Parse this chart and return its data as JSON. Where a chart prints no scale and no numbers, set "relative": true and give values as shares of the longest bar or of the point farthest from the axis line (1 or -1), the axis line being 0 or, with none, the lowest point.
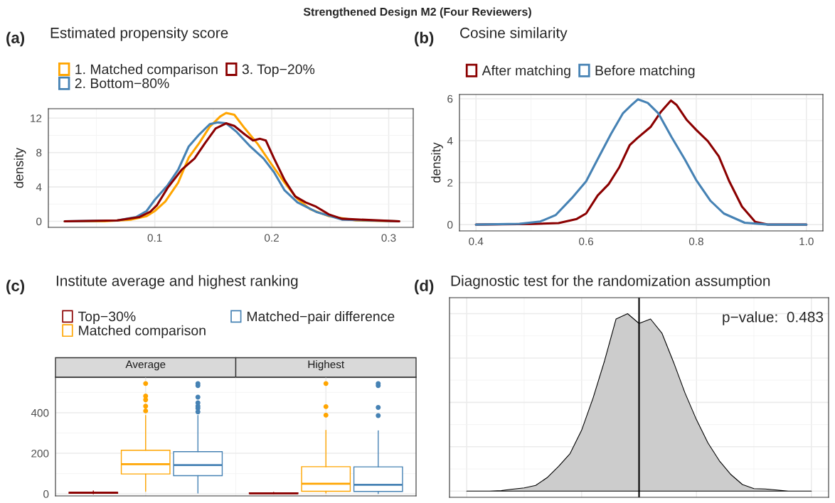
{
  "chart_data": [
    {
      "type": "line",
      "title": "Estimated propensity score",
      "ylabel": "density",
      "annotations": [
        "Strengthened Design M2 (Four Reviewers)",
        "(a)"
      ],
      "legend": "top",
      "grid": true,
      "xlim": [
        0.009,
        0.321
      ],
      "ylim": [
        -0.7,
        13.1
      ],
      "xticks": [
        0.1,
        0.2,
        0.3
      ],
      "yticks": [
        0,
        4,
        8,
        12
      ],
      "series": [
        {
          "name": "1. Matched comparison",
          "color": "#ffa500",
          "x": [
            0.023,
            0.057,
            0.08,
            0.093,
            0.1,
            0.109,
            0.12,
            0.129,
            0.138,
            0.147,
            0.156,
            0.161,
            0.168,
            0.177,
            0.188,
            0.199,
            0.211,
            0.222,
            0.233,
            0.249,
            0.272,
            0.309
          ],
          "values": [
            0,
            0,
            0.2,
            0.6,
            1.2,
            2.3,
            4.5,
            7.4,
            9.1,
            11.0,
            12.2,
            12.6,
            12.4,
            10.8,
            9.0,
            6.8,
            4.5,
            2.6,
            1.4,
            0.6,
            0.1,
            0
          ]
        },
        {
          "name": "2. Bottom−80%",
          "color": "#4682b4",
          "x": [
            0.023,
            0.068,
            0.084,
            0.093,
            0.1,
            0.111,
            0.12,
            0.129,
            0.138,
            0.147,
            0.154,
            0.161,
            0.17,
            0.181,
            0.193,
            0.202,
            0.211,
            0.222,
            0.238,
            0.26,
            0.309
          ],
          "values": [
            0,
            0.1,
            0.5,
            1.2,
            2.5,
            4.2,
            6.0,
            8.7,
            10.1,
            11.3,
            11.5,
            11.4,
            10.4,
            8.8,
            7.3,
            5.7,
            3.6,
            2.2,
            1.1,
            0.2,
            0
          ]
        },
        {
          "name": "3. Top−20%",
          "color": "#8b0000",
          "x": [
            0.023,
            0.068,
            0.087,
            0.096,
            0.102,
            0.111,
            0.123,
            0.134,
            0.143,
            0.152,
            0.161,
            0.168,
            0.177,
            0.184,
            0.19,
            0.195,
            0.202,
            0.211,
            0.22,
            0.229,
            0.238,
            0.249,
            0.26,
            0.309
          ],
          "values": [
            0,
            0.1,
            0.5,
            1.1,
            1.9,
            3.9,
            6.0,
            7.3,
            9.1,
            10.8,
            11.4,
            11.1,
            10.1,
            9.4,
            9.6,
            9.4,
            7.3,
            4.8,
            2.9,
            2.2,
            1.7,
            0.8,
            0.3,
            0
          ]
        }
      ]
    },
    {
      "type": "line",
      "title": "Cosine similarity",
      "ylabel": "density",
      "annotations": [
        "(b)"
      ],
      "legend": "top",
      "grid": true,
      "xlim": [
        0.37,
        1.03
      ],
      "ylim": [
        -0.3,
        6.2
      ],
      "xticks": [
        0.4,
        0.6,
        0.8,
        {
          "value": 1.0,
          "label": "1.0"
        }
      ],
      "yticks": [
        0,
        2,
        4,
        6
      ],
      "series": [
        {
          "name": "After matching",
          "color": "#8b0000",
          "x": [
            0.4,
            0.502,
            0.55,
            0.583,
            0.6,
            0.621,
            0.641,
            0.66,
            0.679,
            0.693,
            0.717,
            0.736,
            0.754,
            0.764,
            0.783,
            0.8,
            0.821,
            0.841,
            0.86,
            0.883,
            0.907,
            0.931,
            1.0
          ],
          "values": [
            0,
            0.03,
            0.07,
            0.27,
            0.53,
            1.39,
            1.93,
            2.72,
            3.78,
            4.12,
            4.65,
            5.38,
            5.91,
            5.71,
            4.98,
            4.51,
            3.98,
            3.25,
            2.06,
            0.86,
            0.13,
            0,
            0
          ]
        },
        {
          "name": "Before matching",
          "color": "#4682b4",
          "x": [
            0.4,
            0.479,
            0.517,
            0.545,
            0.574,
            0.6,
            0.621,
            0.645,
            0.667,
            0.683,
            0.694,
            0.712,
            0.731,
            0.755,
            0.779,
            0.8,
            0.826,
            0.85,
            0.888,
            0.931,
            1.0
          ],
          "values": [
            0,
            0.04,
            0.15,
            0.46,
            1.26,
            2.06,
            3.12,
            4.31,
            5.31,
            5.71,
            5.97,
            5.8,
            5.31,
            4.18,
            3.12,
            2.12,
            1.13,
            0.53,
            0.09,
            0,
            0
          ]
        }
      ]
    },
    {
      "type": "box",
      "title": "Institute average and highest ranking",
      "annotations": [
        "(c)"
      ],
      "legend": "top",
      "grid": true,
      "categories": [
        "Average",
        "Highest"
      ],
      "ylim": [
        -10,
        575
      ],
      "yticks": [
        0,
        200,
        400
      ],
      "series": [
        {
          "name": "Top−30%",
          "color": "#8b0000",
          "boxes": [
            {
              "low": 0,
              "q1": 3,
              "median": 5,
              "q3": 8,
              "high": 15
            },
            {
              "low": 0,
              "q1": 1,
              "median": 3,
              "q3": 5,
              "high": 8
            }
          ]
        },
        {
          "name": "Matched comparison",
          "color": "#ffa500",
          "boxes": [
            {
              "low": 13,
              "q1": 98,
              "median": 146,
              "q3": 215,
              "high": 387,
              "outliers": [
                409,
                432,
                464,
                482,
                544
              ]
            },
            {
              "low": 4,
              "q1": 13,
              "median": 50,
              "q3": 134,
              "high": 313,
              "outliers": [
                388,
                430,
                544
              ]
            }
          ]
        },
        {
          "name": "Matched−pair difference",
          "color": "#4682b4",
          "boxes": [
            {
              "low": 4,
              "q1": 90,
              "median": 142,
              "q3": 208,
              "high": 387,
              "outliers": [
                404,
                422,
                432,
                449,
                477,
                534,
                544
              ]
            },
            {
              "low": 1,
              "q1": 12,
              "median": 45,
              "q3": 133,
              "high": 311,
              "outliers": [
                386,
                426,
                534,
                544
              ]
            }
          ]
        }
      ]
    },
    {
      "type": "area",
      "title": "Diagnostic test for the randomization assumption",
      "annotations": [
        "(d)",
        "p−value:  0.483"
      ],
      "relative": true,
      "grid": true,
      "categories": [
        null,
        null,
        null,
        null,
        null,
        null,
        null,
        null,
        null,
        null,
        null,
        null,
        null,
        null,
        null,
        null,
        null,
        null,
        null,
        null,
        null,
        null,
        null,
        null,
        null,
        null,
        null,
        null,
        null,
        null,
        null
      ],
      "series": [
        {
          "color": "#cccccc",
          "values": [
            0,
            0,
            0,
            0.003,
            0.011,
            0.018,
            0.032,
            0.076,
            0.14,
            0.212,
            0.343,
            0.525,
            0.735,
            0.97,
            1.0,
            0.945,
            0.97,
            0.889,
            0.727,
            0.553,
            0.402,
            0.271,
            0.17,
            0.093,
            0.037,
            0.014,
            0.012,
            0.006,
            0,
            0,
            0
          ]
        }
      ]
    }
  ]
}
